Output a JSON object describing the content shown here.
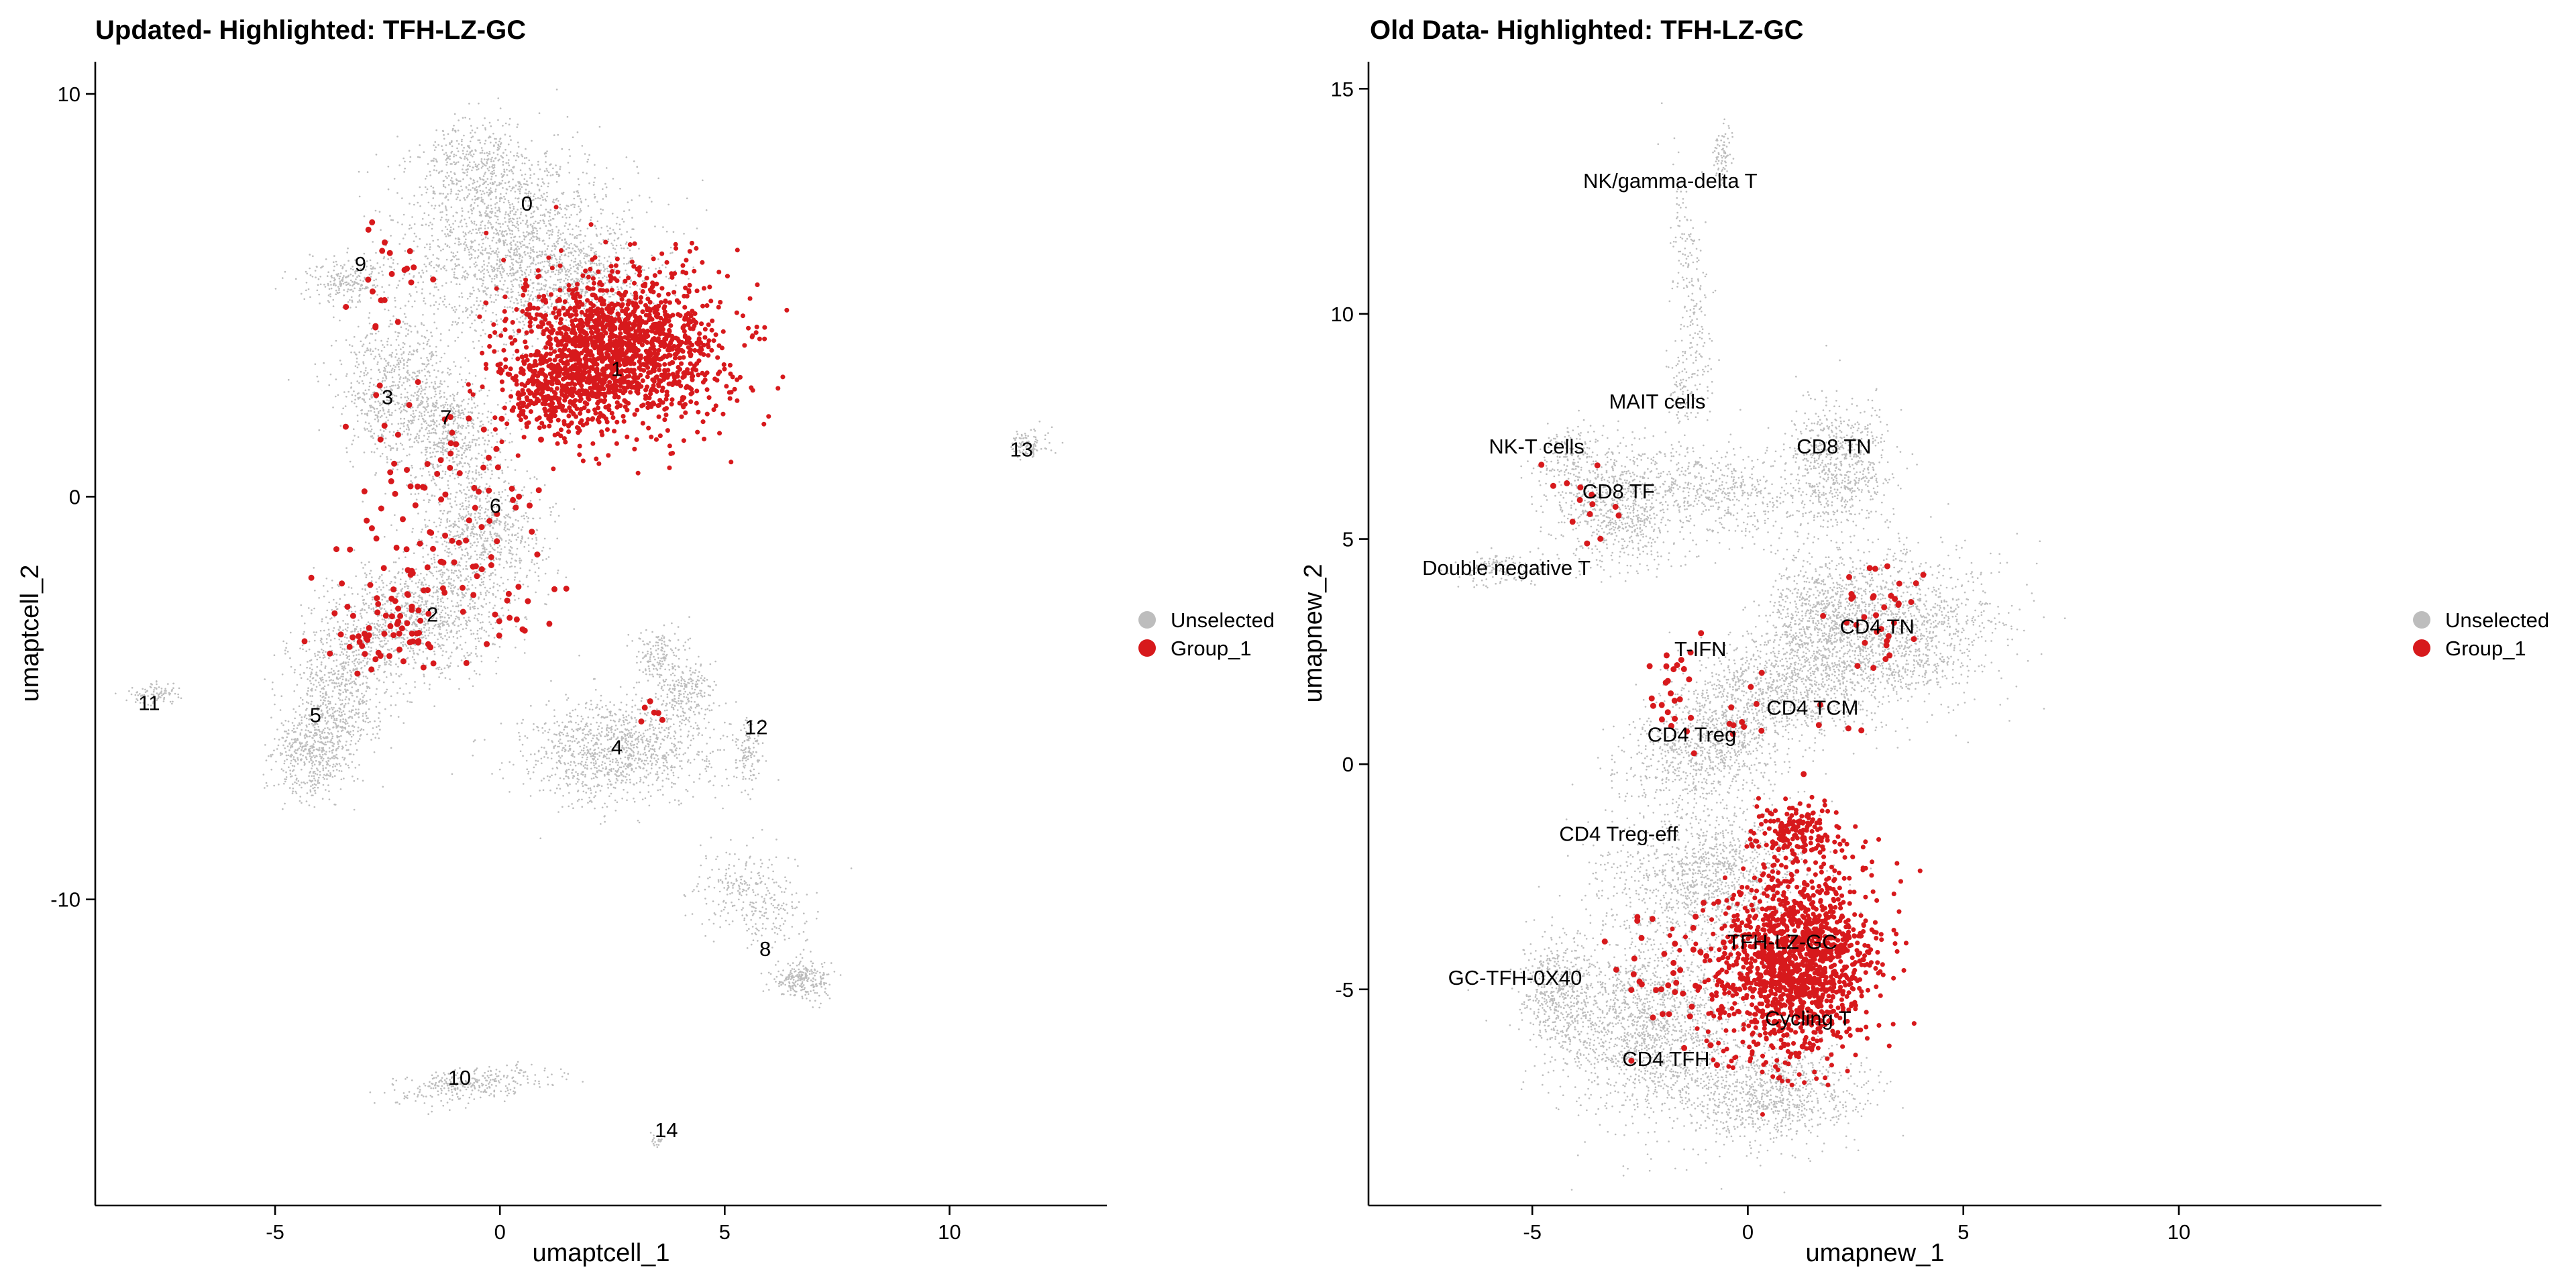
{
  "colors": {
    "unselected": "#bdbdbd",
    "group": "#d7191c"
  },
  "chart_data": [
    {
      "type": "scatter",
      "title": "Updated- Highlighted: TFH-LZ-GC",
      "xlabel": "umaptcell_1",
      "ylabel": "umaptcell_2",
      "xlim": [
        -9,
        13.5
      ],
      "ylim": [
        -17.6,
        10.8
      ],
      "xticks": [
        -5,
        0,
        5,
        10
      ],
      "yticks": [
        10,
        0,
        -10
      ],
      "xtick_labels": [
        "-5",
        "0",
        "5",
        "10"
      ],
      "ytick_labels": [
        "10",
        "0",
        "-10"
      ],
      "legend": {
        "position": "right",
        "entries": [
          "Unselected",
          "Group_1"
        ]
      },
      "clusters": [
        {
          "label": "0",
          "x": 0.6,
          "y": 7.1
        },
        {
          "label": "1",
          "x": 2.6,
          "y": 3.0
        },
        {
          "label": "2",
          "x": -1.5,
          "y": -3.1
        },
        {
          "label": "3",
          "x": -2.5,
          "y": 2.3
        },
        {
          "label": "4",
          "x": 2.6,
          "y": -6.4
        },
        {
          "label": "5",
          "x": -4.1,
          "y": -5.6
        },
        {
          "label": "6",
          "x": -0.1,
          "y": -0.4
        },
        {
          "label": "7",
          "x": -1.2,
          "y": 1.8
        },
        {
          "label": "8",
          "x": 5.9,
          "y": -11.4
        },
        {
          "label": "9",
          "x": -3.1,
          "y": 5.6
        },
        {
          "label": "10",
          "x": -0.9,
          "y": -14.6
        },
        {
          "label": "11",
          "x": -7.8,
          "y": -5.3
        },
        {
          "label": "12",
          "x": 5.7,
          "y": -5.9
        },
        {
          "label": "13",
          "x": 11.6,
          "y": 1.0
        },
        {
          "label": "14",
          "x": 3.7,
          "y": -15.9
        }
      ]
    },
    {
      "type": "scatter",
      "title": "Old Data- Highlighted: TFH-LZ-GC",
      "xlabel": "umapnew_1",
      "ylabel": "umapnew_2",
      "xlim": [
        -8.8,
        14.7
      ],
      "ylim": [
        -9.8,
        15.6
      ],
      "xticks": [
        -5,
        0,
        5,
        10
      ],
      "yticks": [
        15,
        10,
        5,
        0,
        -5
      ],
      "xtick_labels": [
        "-5",
        "0",
        "5",
        "10"
      ],
      "ytick_labels": [
        "15",
        "10",
        "5",
        "0",
        "-5"
      ],
      "legend": {
        "position": "right",
        "entries": [
          "Unselected",
          "Group_1"
        ]
      },
      "clusters": [
        {
          "label": "NK/gamma-delta T",
          "x": -1.8,
          "y": 12.8
        },
        {
          "label": "MAIT cells",
          "x": -2.1,
          "y": 7.9
        },
        {
          "label": "NK-T cells",
          "x": -4.9,
          "y": 6.9
        },
        {
          "label": "CD8 TN",
          "x": 2.0,
          "y": 6.9
        },
        {
          "label": "CD8 TF",
          "x": -3.0,
          "y": 5.9
        },
        {
          "label": "Double negative T",
          "x": -5.6,
          "y": 4.2
        },
        {
          "label": "CD4 TN",
          "x": 3.0,
          "y": 2.9
        },
        {
          "label": "T-IFN",
          "x": -1.1,
          "y": 2.4
        },
        {
          "label": "CD4 TCM",
          "x": 1.5,
          "y": 1.1
        },
        {
          "label": "CD4 Treg",
          "x": -1.3,
          "y": 0.5
        },
        {
          "label": "CD4 Treg-eff",
          "x": -3.0,
          "y": -1.7
        },
        {
          "label": "TFH-LZ-GC",
          "x": 0.8,
          "y": -4.1
        },
        {
          "label": "GC-TFH-0X40",
          "x": -5.4,
          "y": -4.9
        },
        {
          "label": "Cycling T",
          "x": 1.4,
          "y": -5.8
        },
        {
          "label": "CD4 TFH",
          "x": -1.9,
          "y": -6.7
        }
      ]
    }
  ]
}
